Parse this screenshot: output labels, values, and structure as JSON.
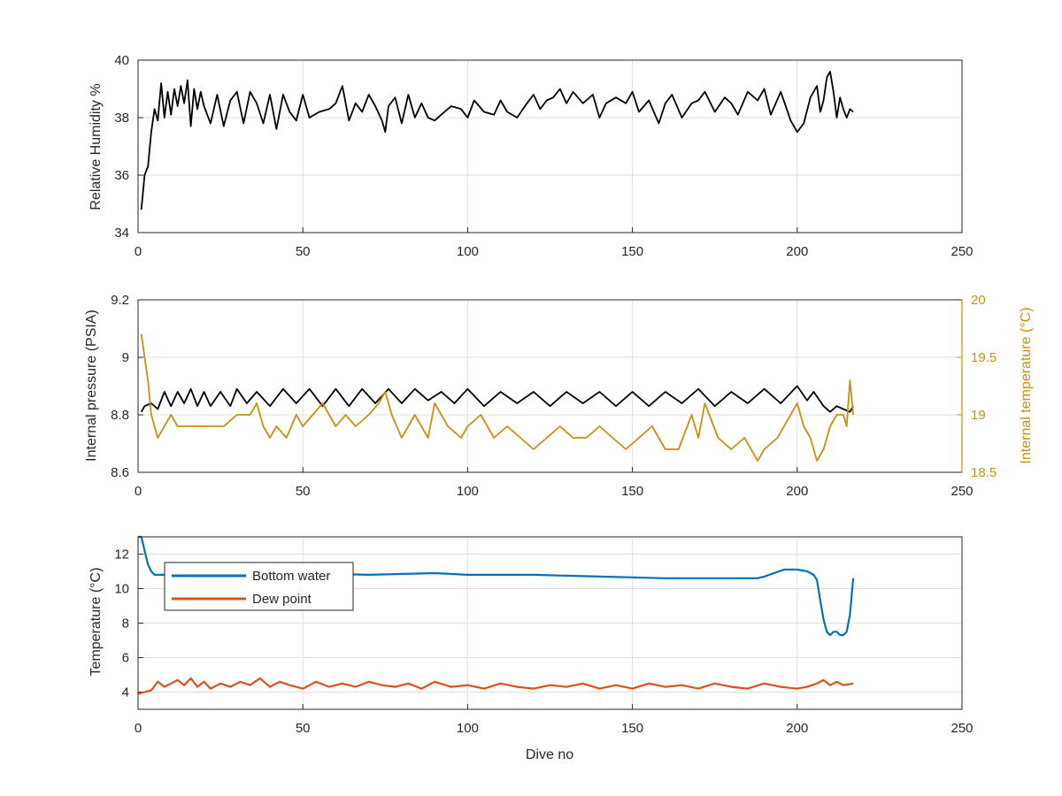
{
  "chart_data": [
    {
      "type": "line",
      "xlim": [
        0,
        250
      ],
      "ylim": [
        34,
        40
      ],
      "xticks": [
        "0",
        "50",
        "100",
        "150",
        "200",
        "250"
      ],
      "yticks": [
        "34",
        "36",
        "38",
        "40"
      ],
      "xlabel": "",
      "ylabel": "Relative Humidity %",
      "grid": true,
      "colors": {
        "line": "#000000"
      },
      "series": [
        {
          "x": [
            1,
            2,
            3,
            4,
            5,
            6,
            7,
            8,
            9,
            10,
            11,
            12,
            13,
            14,
            15,
            16,
            17,
            18,
            19,
            20,
            22,
            24,
            26,
            28,
            30,
            32,
            34,
            36,
            38,
            40,
            42,
            44,
            46,
            48,
            50,
            52,
            55,
            58,
            60,
            62,
            64,
            66,
            68,
            70,
            72,
            74,
            75,
            76,
            78,
            80,
            82,
            84,
            86,
            88,
            90,
            92,
            95,
            98,
            100,
            102,
            105,
            108,
            110,
            112,
            115,
            118,
            120,
            122,
            124,
            126,
            128,
            130,
            132,
            135,
            138,
            140,
            142,
            145,
            148,
            150,
            152,
            155,
            158,
            160,
            162,
            165,
            168,
            170,
            172,
            175,
            178,
            180,
            182,
            185,
            188,
            190,
            192,
            195,
            198,
            200,
            202,
            204,
            206,
            207,
            208,
            209,
            210,
            211,
            212,
            213,
            214,
            215,
            216,
            217
          ],
          "y": [
            34.8,
            36.0,
            36.3,
            37.5,
            38.3,
            37.9,
            39.2,
            38.0,
            38.9,
            38.1,
            39.0,
            38.4,
            39.1,
            38.5,
            39.3,
            37.7,
            39.0,
            38.3,
            38.9,
            38.4,
            37.8,
            38.8,
            37.7,
            38.6,
            38.9,
            37.8,
            38.9,
            38.5,
            37.8,
            38.8,
            37.6,
            38.8,
            38.2,
            37.9,
            38.8,
            38.0,
            38.2,
            38.3,
            38.5,
            39.1,
            37.9,
            38.5,
            38.2,
            38.8,
            38.4,
            37.9,
            37.5,
            38.4,
            38.7,
            37.8,
            38.8,
            38.0,
            38.5,
            38.0,
            37.9,
            38.1,
            38.4,
            38.3,
            38.0,
            38.6,
            38.2,
            38.1,
            38.6,
            38.2,
            38.0,
            38.5,
            38.8,
            38.3,
            38.6,
            38.7,
            39.0,
            38.5,
            38.9,
            38.5,
            38.8,
            38.0,
            38.5,
            38.7,
            38.5,
            38.9,
            38.2,
            38.6,
            37.8,
            38.5,
            38.8,
            38.0,
            38.5,
            38.6,
            38.9,
            38.2,
            38.7,
            38.5,
            38.1,
            38.9,
            38.6,
            39.0,
            38.1,
            38.9,
            37.9,
            37.5,
            37.8,
            38.7,
            39.1,
            38.2,
            38.6,
            39.4,
            39.6,
            38.9,
            38.0,
            38.7,
            38.3,
            38.0,
            38.3,
            38.2
          ]
        }
      ]
    },
    {
      "type": "line",
      "xlim": [
        0,
        250
      ],
      "ylim": [
        8.6,
        9.2
      ],
      "y2lim": [
        18.5,
        20
      ],
      "xticks": [
        "0",
        "50",
        "100",
        "150",
        "200",
        "250"
      ],
      "yticks": [
        "8.6",
        "8.8",
        "9",
        "9.2"
      ],
      "y2ticks": [
        "18.5",
        "19",
        "19.5",
        "20"
      ],
      "xlabel": "",
      "ylabel": "Internal pressure (PSIA)",
      "y2label": "Internal temperature (°C)",
      "grid": true,
      "colors": {
        "pressure": "#000000",
        "temperature": "#C8900E"
      },
      "series": [
        {
          "axis": "left",
          "x": [
            1,
            2,
            4,
            6,
            8,
            10,
            12,
            14,
            16,
            18,
            20,
            22,
            25,
            28,
            30,
            33,
            36,
            40,
            44,
            48,
            52,
            56,
            60,
            64,
            68,
            72,
            76,
            80,
            84,
            88,
            92,
            96,
            100,
            105,
            110,
            115,
            120,
            125,
            130,
            135,
            140,
            145,
            150,
            155,
            160,
            165,
            170,
            175,
            180,
            185,
            190,
            195,
            200,
            203,
            205,
            208,
            210,
            212,
            214,
            216,
            217
          ],
          "y": [
            8.81,
            8.83,
            8.84,
            8.82,
            8.88,
            8.83,
            8.88,
            8.84,
            8.89,
            8.83,
            8.88,
            8.83,
            8.88,
            8.83,
            8.89,
            8.84,
            8.88,
            8.83,
            8.89,
            8.84,
            8.89,
            8.83,
            8.89,
            8.83,
            8.89,
            8.84,
            8.89,
            8.84,
            8.89,
            8.85,
            8.88,
            8.84,
            8.89,
            8.83,
            8.88,
            8.84,
            8.88,
            8.83,
            8.88,
            8.84,
            8.88,
            8.83,
            8.88,
            8.83,
            8.88,
            8.84,
            8.89,
            8.83,
            8.88,
            8.84,
            8.89,
            8.84,
            8.9,
            8.85,
            8.88,
            8.83,
            8.81,
            8.83,
            8.82,
            8.81,
            8.83
          ]
        },
        {
          "axis": "right",
          "x": [
            1,
            2,
            3,
            4,
            5,
            6,
            8,
            10,
            12,
            15,
            18,
            22,
            26,
            30,
            34,
            36,
            38,
            40,
            42,
            45,
            48,
            50,
            53,
            56,
            60,
            63,
            66,
            70,
            73,
            75,
            77,
            80,
            84,
            88,
            90,
            94,
            98,
            100,
            104,
            108,
            112,
            116,
            120,
            124,
            128,
            132,
            136,
            140,
            144,
            148,
            152,
            156,
            160,
            164,
            168,
            170,
            172,
            176,
            180,
            184,
            186,
            188,
            190,
            194,
            198,
            200,
            202,
            204,
            206,
            208,
            210,
            212,
            214,
            215,
            216,
            217
          ],
          "y": [
            19.7,
            19.5,
            19.3,
            19.0,
            18.9,
            18.8,
            18.9,
            19.0,
            18.9,
            18.9,
            18.9,
            18.9,
            18.9,
            19.0,
            19.0,
            19.1,
            18.9,
            18.8,
            18.9,
            18.8,
            19.0,
            18.9,
            19.0,
            19.1,
            18.9,
            19.0,
            18.9,
            19.0,
            19.1,
            19.2,
            19.0,
            18.8,
            19.0,
            18.8,
            19.1,
            18.9,
            18.8,
            18.9,
            19.0,
            18.8,
            18.9,
            18.8,
            18.7,
            18.8,
            18.9,
            18.8,
            18.8,
            18.9,
            18.8,
            18.7,
            18.8,
            18.9,
            18.7,
            18.7,
            19.0,
            18.8,
            19.1,
            18.8,
            18.7,
            18.8,
            18.7,
            18.6,
            18.7,
            18.8,
            19.0,
            19.1,
            18.9,
            18.8,
            18.6,
            18.7,
            18.9,
            19.0,
            19.0,
            18.9,
            19.3,
            19.0
          ]
        }
      ]
    },
    {
      "type": "line",
      "xlim": [
        0,
        250
      ],
      "ylim": [
        3,
        13
      ],
      "xticks": [
        "0",
        "50",
        "100",
        "150",
        "200",
        "250"
      ],
      "yticks": [
        "4",
        "6",
        "8",
        "10",
        "12"
      ],
      "xlabel": "Dive no",
      "ylabel": "Temperature (°C)",
      "grid": true,
      "legend": "top-left",
      "series": [
        {
          "name": "Bottom water",
          "color": "#0072BD",
          "x": [
            0,
            1,
            2,
            3,
            4,
            5,
            8,
            15,
            30,
            50,
            70,
            90,
            100,
            120,
            140,
            160,
            175,
            188,
            190,
            193,
            196,
            200,
            203,
            205,
            206,
            207,
            208,
            209,
            210,
            211,
            212,
            213,
            214,
            215,
            216,
            217
          ],
          "y": [
            13.0,
            13.0,
            12.2,
            11.4,
            11.0,
            10.8,
            10.8,
            10.9,
            11.0,
            10.9,
            10.8,
            10.9,
            10.8,
            10.8,
            10.7,
            10.6,
            10.6,
            10.6,
            10.7,
            10.9,
            11.1,
            11.1,
            11.0,
            10.8,
            10.5,
            9.3,
            8.2,
            7.5,
            7.3,
            7.5,
            7.5,
            7.3,
            7.3,
            7.5,
            8.5,
            10.6
          ]
        },
        {
          "name": "Dew point",
          "color": "#D95319",
          "x": [
            0,
            2,
            4,
            6,
            8,
            10,
            12,
            14,
            16,
            18,
            20,
            22,
            25,
            28,
            31,
            34,
            37,
            40,
            43,
            46,
            50,
            54,
            58,
            62,
            66,
            70,
            74,
            78,
            82,
            86,
            90,
            95,
            100,
            105,
            110,
            115,
            120,
            125,
            130,
            135,
            140,
            145,
            150,
            155,
            160,
            165,
            170,
            175,
            180,
            185,
            190,
            195,
            200,
            203,
            206,
            208,
            210,
            212,
            214,
            217
          ],
          "y": [
            3.9,
            4.0,
            4.1,
            4.6,
            4.3,
            4.5,
            4.7,
            4.4,
            4.8,
            4.3,
            4.6,
            4.2,
            4.5,
            4.3,
            4.6,
            4.4,
            4.8,
            4.3,
            4.6,
            4.4,
            4.2,
            4.6,
            4.3,
            4.5,
            4.3,
            4.6,
            4.4,
            4.3,
            4.5,
            4.2,
            4.6,
            4.3,
            4.4,
            4.2,
            4.5,
            4.3,
            4.2,
            4.4,
            4.3,
            4.5,
            4.2,
            4.4,
            4.2,
            4.5,
            4.3,
            4.4,
            4.2,
            4.5,
            4.3,
            4.2,
            4.5,
            4.3,
            4.2,
            4.3,
            4.5,
            4.7,
            4.4,
            4.6,
            4.4,
            4.5
          ]
        }
      ]
    }
  ]
}
